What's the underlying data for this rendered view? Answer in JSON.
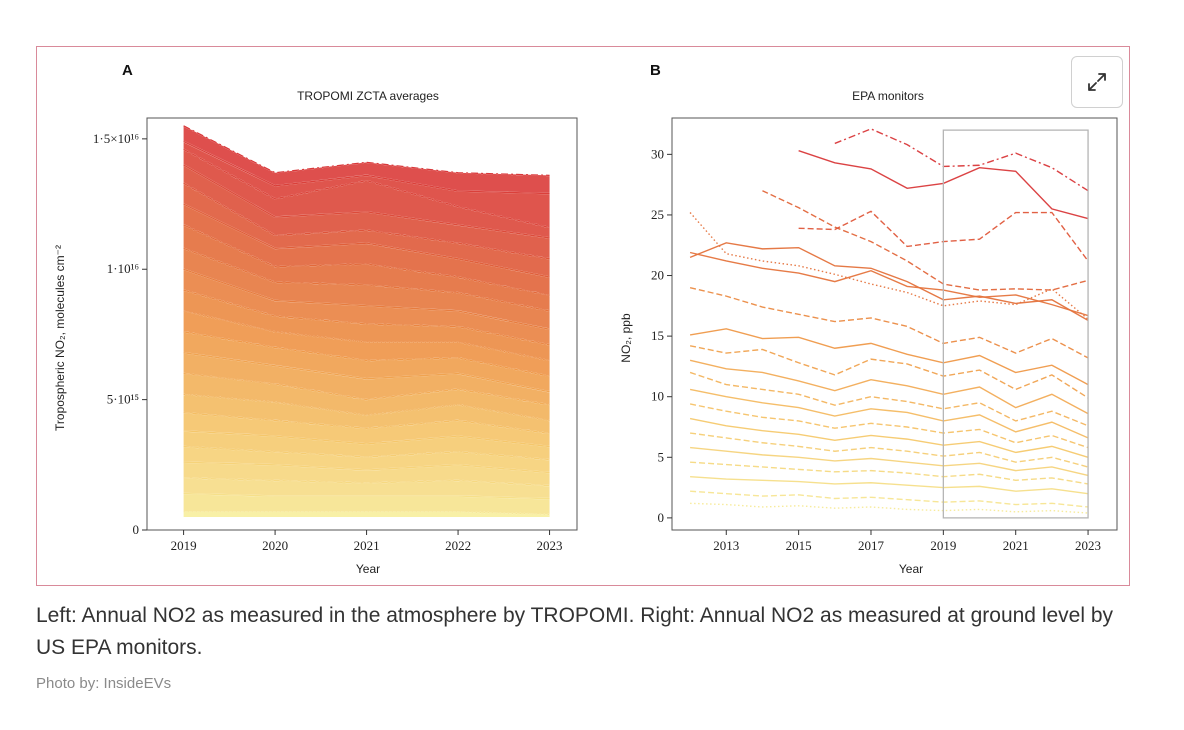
{
  "caption": "Left: Annual NO2 as measured in the atmosphere by TROPOMI. Right: Annual NO2 as measured at ground level by US EPA monitors.",
  "credit": "Photo by: InsideEVs",
  "expand_icon": "expand-arrows-icon",
  "chart_data": [
    {
      "type": "line",
      "panel": "A",
      "title": "TROPOMI ZCTA averages",
      "xlabel": "Year",
      "ylabel": "Tropospheric NO₂, molecules cm⁻²",
      "x": [
        2019,
        2020,
        2021,
        2022,
        2023
      ],
      "xlim": [
        2018.6,
        2023.3
      ],
      "ylim": [
        0,
        1.58e+16
      ],
      "yticks": [
        0,
        5000000000000000.0,
        1e+16,
        1.5e+16
      ],
      "ytick_labels": [
        "0",
        "5·10¹⁵",
        "1·10¹⁶",
        "1·5×10¹⁶"
      ],
      "xtick_labels": [
        "2019",
        "2020",
        "2021",
        "2022",
        "2023"
      ],
      "color_scale": [
        "#f7ee9c",
        "#f5c66a",
        "#ef9747",
        "#e26a3a",
        "#d9383a"
      ],
      "note": "Dense ensemble of many ZCTA series; representative series listed",
      "series": [
        {
          "name": "s1",
          "values": [
            1.55e+16,
            1.37e+16,
            1.41e+16,
            1.37e+16,
            1.36e+16
          ],
          "style": "dashdot"
        },
        {
          "name": "s2",
          "values": [
            1.49e+16,
            1.32e+16,
            1.36e+16,
            1.3e+16,
            1.29e+16
          ],
          "style": "solid"
        },
        {
          "name": "s3",
          "values": [
            1.46e+16,
            1.27e+16,
            1.34e+16,
            1.24e+16,
            1.16e+16
          ],
          "style": "dashed"
        },
        {
          "name": "s4",
          "values": [
            1.4e+16,
            1.2e+16,
            1.22e+16,
            1.17e+16,
            1.12e+16
          ],
          "style": "solid"
        },
        {
          "name": "s5",
          "values": [
            1.33e+16,
            1.13e+16,
            1.15e+16,
            1.1e+16,
            1.04e+16
          ],
          "style": "dashed"
        },
        {
          "name": "s6",
          "values": [
            1.25e+16,
            1.08e+16,
            1.1e+16,
            1.04e+16,
            9700000000000000.0
          ],
          "style": "solid"
        },
        {
          "name": "s7",
          "values": [
            1.17e+16,
            1.01e+16,
            1.02e+16,
            9700000000000000.0,
            9000000000000000.0
          ],
          "style": "dashdot"
        },
        {
          "name": "s8",
          "values": [
            1.08e+16,
            9500000000000000.0,
            9400000000000000.0,
            9100000000000000.0,
            8400000000000000.0
          ],
          "style": "dashed"
        },
        {
          "name": "s9",
          "values": [
            1e+16,
            8800000000000000.0,
            8600000000000000.0,
            8400000000000000.0,
            7700000000000000.0
          ],
          "style": "solid"
        },
        {
          "name": "s10",
          "values": [
            9200000000000000.0,
            8200000000000000.0,
            7900000000000000.0,
            7800000000000000.0,
            7100000000000000.0
          ],
          "style": "dashed"
        },
        {
          "name": "s11",
          "values": [
            8400000000000000.0,
            7600000000000000.0,
            7200000000000000.0,
            7200000000000000.0,
            6500000000000000.0
          ],
          "style": "dotted"
        },
        {
          "name": "s12",
          "values": [
            7600000000000000.0,
            7000000000000000.0,
            6500000000000000.0,
            6600000000000000.0,
            5900000000000000.0
          ],
          "style": "dashed"
        },
        {
          "name": "s13",
          "values": [
            6800000000000000.0,
            6300000000000000.0,
            5800000000000000.0,
            6000000000000000.0,
            5300000000000000.0
          ],
          "style": "solid"
        },
        {
          "name": "s14",
          "values": [
            6000000000000000.0,
            5600000000000000.0,
            5000000000000000.0,
            5400000000000000.0,
            4800000000000000.0
          ],
          "style": "dashed"
        },
        {
          "name": "s15",
          "values": [
            5200000000000000.0,
            4900000000000000.0,
            4400000000000000.0,
            4800000000000000.0,
            4200000000000000.0
          ],
          "style": "dotted"
        },
        {
          "name": "s16",
          "values": [
            4500000000000000.0,
            4200000000000000.0,
            3900000000000000.0,
            4200000000000000.0,
            3700000000000000.0
          ],
          "style": "dashed"
        },
        {
          "name": "s17",
          "values": [
            3800000000000000.0,
            3600000000000000.0,
            3300000000000000.0,
            3600000000000000.0,
            3200000000000000.0
          ],
          "style": "solid"
        },
        {
          "name": "s18",
          "values": [
            3200000000000000.0,
            3000000000000000.0,
            2800000000000000.0,
            3000000000000000.0,
            2700000000000000.0
          ],
          "style": "dashed"
        },
        {
          "name": "s19",
          "values": [
            2600000000000000.0,
            2500000000000000.0,
            2300000000000000.0,
            2500000000000000.0,
            2200000000000000.0
          ],
          "style": "solid"
        },
        {
          "name": "s20",
          "values": [
            2000000000000000.0,
            1900000000000000.0,
            1800000000000000.0,
            1900000000000000.0,
            1700000000000000.0
          ],
          "style": "dashed"
        },
        {
          "name": "s21",
          "values": [
            1400000000000000.0,
            1300000000000000.0,
            1300000000000000.0,
            1300000000000000.0,
            1200000000000000.0
          ],
          "style": "solid"
        },
        {
          "name": "s22",
          "values": [
            700000000000000.0,
            700000000000000.0,
            700000000000000.0,
            700000000000000.0,
            600000000000000.0
          ],
          "style": "dotted"
        }
      ]
    },
    {
      "type": "line",
      "panel": "B",
      "title": "EPA monitors",
      "xlabel": "Year",
      "ylabel": "NO₂, ppb",
      "xlim": [
        2011.5,
        2023.8
      ],
      "ylim": [
        -1,
        33
      ],
      "xticks": [
        2013,
        2015,
        2017,
        2019,
        2021,
        2023
      ],
      "xtick_labels": [
        "2013",
        "2015",
        "2017",
        "2019",
        "2021",
        "2023"
      ],
      "yticks": [
        0,
        5,
        10,
        15,
        20,
        25,
        30
      ],
      "ytick_labels": [
        "0",
        "5",
        "10",
        "15",
        "20",
        "25",
        "30"
      ],
      "highlight_box": {
        "x": [
          2019,
          2023
        ],
        "y": [
          0,
          32
        ]
      },
      "series": [
        {
          "name": "m1",
          "x": [
            2015,
            2016,
            2017,
            2018,
            2019,
            2020,
            2021,
            2022,
            2023
          ],
          "values": [
            30.3,
            29.3,
            28.8,
            27.2,
            27.6,
            28.9,
            28.6,
            25.5,
            24.7
          ],
          "style": "solid"
        },
        {
          "name": "m2",
          "x": [
            2016,
            2017,
            2018,
            2019,
            2020,
            2021,
            2022,
            2023
          ],
          "values": [
            30.9,
            32.1,
            30.8,
            29.0,
            29.1,
            30.1,
            28.9,
            27.0
          ],
          "style": "dashdot"
        },
        {
          "name": "m3",
          "x": [
            2014,
            2015,
            2016,
            2017,
            2018,
            2019,
            2020,
            2021,
            2022,
            2023
          ],
          "values": [
            27.0,
            25.6,
            24.0,
            22.8,
            21.2,
            19.3,
            18.8,
            18.9,
            18.8,
            19.6
          ],
          "style": "dashed"
        },
        {
          "name": "m4",
          "x": [
            2012,
            2013,
            2014,
            2015,
            2016,
            2017,
            2018,
            2019,
            2020,
            2021,
            2022,
            2023
          ],
          "values": [
            25.2,
            21.8,
            21.2,
            20.8,
            20.1,
            19.3,
            18.6,
            17.5,
            17.9,
            17.6,
            18.9,
            16.4
          ],
          "style": "dotted"
        },
        {
          "name": "m5",
          "x": [
            2012,
            2013,
            2014,
            2015,
            2016,
            2017,
            2018,
            2019,
            2020,
            2021,
            2022,
            2023
          ],
          "values": [
            21.5,
            22.7,
            22.2,
            22.3,
            20.8,
            20.6,
            19.5,
            18.0,
            18.3,
            17.7,
            18.0,
            16.3
          ],
          "style": "solid"
        },
        {
          "name": "m6",
          "x": [
            2015,
            2016,
            2017,
            2018,
            2019,
            2020,
            2021,
            2022,
            2023
          ],
          "values": [
            23.9,
            23.8,
            25.3,
            22.4,
            22.8,
            23.0,
            25.2,
            25.2,
            21.2
          ],
          "style": "dashed"
        },
        {
          "name": "m7",
          "x": [
            2012,
            2013,
            2014,
            2015,
            2016,
            2017,
            2018,
            2019,
            2020,
            2021,
            2022,
            2023
          ],
          "values": [
            21.9,
            21.2,
            20.6,
            20.2,
            19.5,
            20.4,
            19.1,
            18.8,
            18.2,
            18.4,
            17.6,
            16.7
          ],
          "style": "solid"
        },
        {
          "name": "m8",
          "x": [
            2012,
            2013,
            2014,
            2015,
            2016,
            2017,
            2018,
            2019,
            2020,
            2021,
            2022,
            2023
          ],
          "values": [
            19.0,
            18.3,
            17.4,
            16.8,
            16.2,
            16.5,
            15.8,
            14.4,
            14.9,
            13.6,
            14.8,
            13.2
          ],
          "style": "dashed"
        },
        {
          "name": "m9",
          "x": [
            2012,
            2013,
            2014,
            2015,
            2016,
            2017,
            2018,
            2019,
            2020,
            2021,
            2022,
            2023
          ],
          "values": [
            15.1,
            15.6,
            14.8,
            14.9,
            14.0,
            14.4,
            13.5,
            12.8,
            13.4,
            12.0,
            12.6,
            11.0
          ],
          "style": "solid"
        },
        {
          "name": "m10",
          "x": [
            2012,
            2013,
            2014,
            2015,
            2016,
            2017,
            2018,
            2019,
            2020,
            2021,
            2022,
            2023
          ],
          "values": [
            14.2,
            13.6,
            13.9,
            12.8,
            11.8,
            13.1,
            12.7,
            11.7,
            12.2,
            10.6,
            11.8,
            9.9
          ],
          "style": "dashed"
        },
        {
          "name": "m11",
          "x": [
            2012,
            2013,
            2014,
            2015,
            2016,
            2017,
            2018,
            2019,
            2020,
            2021,
            2022,
            2023
          ],
          "values": [
            13.0,
            12.3,
            12.0,
            11.3,
            10.5,
            11.4,
            10.9,
            10.2,
            10.8,
            9.1,
            10.2,
            8.6
          ],
          "style": "solid"
        },
        {
          "name": "m12",
          "x": [
            2012,
            2013,
            2014,
            2015,
            2016,
            2017,
            2018,
            2019,
            2020,
            2021,
            2022,
            2023
          ],
          "values": [
            12.0,
            11.0,
            10.6,
            10.2,
            9.3,
            10.0,
            9.6,
            9.0,
            9.5,
            8.0,
            8.8,
            7.6
          ],
          "style": "dashed"
        },
        {
          "name": "m13",
          "x": [
            2012,
            2013,
            2014,
            2015,
            2016,
            2017,
            2018,
            2019,
            2020,
            2021,
            2022,
            2023
          ],
          "values": [
            10.6,
            10.0,
            9.5,
            9.1,
            8.4,
            9.0,
            8.7,
            8.0,
            8.5,
            7.1,
            7.9,
            6.6
          ],
          "style": "solid"
        },
        {
          "name": "m14",
          "x": [
            2012,
            2013,
            2014,
            2015,
            2016,
            2017,
            2018,
            2019,
            2020,
            2021,
            2022,
            2023
          ],
          "values": [
            9.4,
            8.8,
            8.3,
            8.0,
            7.4,
            7.8,
            7.5,
            7.0,
            7.3,
            6.2,
            6.8,
            5.8
          ],
          "style": "dashed"
        },
        {
          "name": "m15",
          "x": [
            2012,
            2013,
            2014,
            2015,
            2016,
            2017,
            2018,
            2019,
            2020,
            2021,
            2022,
            2023
          ],
          "values": [
            8.2,
            7.6,
            7.2,
            6.9,
            6.4,
            6.8,
            6.5,
            6.0,
            6.3,
            5.4,
            5.9,
            5.0
          ],
          "style": "solid"
        },
        {
          "name": "m16",
          "x": [
            2012,
            2013,
            2014,
            2015,
            2016,
            2017,
            2018,
            2019,
            2020,
            2021,
            2022,
            2023
          ],
          "values": [
            7.0,
            6.6,
            6.2,
            5.9,
            5.5,
            5.8,
            5.5,
            5.1,
            5.4,
            4.6,
            5.0,
            4.2
          ],
          "style": "dashed"
        },
        {
          "name": "m17",
          "x": [
            2012,
            2013,
            2014,
            2015,
            2016,
            2017,
            2018,
            2019,
            2020,
            2021,
            2022,
            2023
          ],
          "values": [
            5.8,
            5.5,
            5.2,
            5.0,
            4.7,
            4.9,
            4.6,
            4.3,
            4.5,
            3.9,
            4.2,
            3.5
          ],
          "style": "solid"
        },
        {
          "name": "m18",
          "x": [
            2012,
            2013,
            2014,
            2015,
            2016,
            2017,
            2018,
            2019,
            2020,
            2021,
            2022,
            2023
          ],
          "values": [
            4.6,
            4.4,
            4.2,
            4.0,
            3.8,
            3.9,
            3.7,
            3.4,
            3.6,
            3.1,
            3.3,
            2.8
          ],
          "style": "dashed"
        },
        {
          "name": "m19",
          "x": [
            2012,
            2013,
            2014,
            2015,
            2016,
            2017,
            2018,
            2019,
            2020,
            2021,
            2022,
            2023
          ],
          "values": [
            3.4,
            3.2,
            3.1,
            3.0,
            2.8,
            2.9,
            2.7,
            2.5,
            2.6,
            2.2,
            2.4,
            2.0
          ],
          "style": "solid"
        },
        {
          "name": "m20",
          "x": [
            2012,
            2013,
            2014,
            2015,
            2016,
            2017,
            2018,
            2019,
            2020,
            2021,
            2022,
            2023
          ],
          "values": [
            2.2,
            2.0,
            1.8,
            1.9,
            1.6,
            1.7,
            1.5,
            1.3,
            1.4,
            1.1,
            1.2,
            0.9
          ],
          "style": "dashed"
        },
        {
          "name": "m21",
          "x": [
            2012,
            2013,
            2014,
            2015,
            2016,
            2017,
            2018,
            2019,
            2020,
            2021,
            2022,
            2023
          ],
          "values": [
            1.2,
            1.1,
            0.9,
            1.0,
            0.8,
            0.9,
            0.7,
            0.6,
            0.7,
            0.5,
            0.6,
            0.4
          ],
          "style": "dotted"
        }
      ]
    }
  ]
}
